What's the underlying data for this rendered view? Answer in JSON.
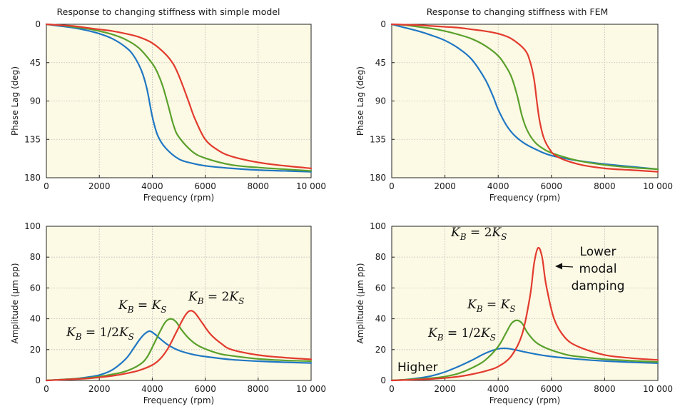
{
  "colors": {
    "blue": "#1f77c4",
    "green": "#5aa02c",
    "red": "#e23b2e",
    "panel_bg": "#fcf9e4",
    "grid": "#bcbcbc"
  },
  "chart_data": [
    {
      "type": "line",
      "title": "Response to changing stiffness with simple model",
      "xlabel": "Frequency (rpm)",
      "ylabel": "Phase Lag (deg)",
      "xlim": [
        0,
        10000
      ],
      "ylim": [
        0,
        180
      ],
      "y_inverted": true,
      "xticks": [
        "0",
        "2000",
        "4000",
        "6000",
        "8000",
        "10 000"
      ],
      "yticks": [
        "0",
        "45",
        "90",
        "135",
        "180"
      ],
      "grid": true,
      "series": [
        {
          "color": "blue",
          "x": [
            0,
            500,
            1000,
            1500,
            2000,
            2500,
            3000,
            3300,
            3600,
            3800,
            4000,
            4200,
            4500,
            5000,
            5500,
            6000,
            7000,
            8000,
            9000,
            10000
          ],
          "y": [
            0,
            2,
            4,
            7,
            11,
            17,
            27,
            37,
            55,
            76,
            108,
            130,
            145,
            158,
            163,
            166,
            169,
            171,
            172,
            173
          ]
        },
        {
          "color": "green",
          "x": [
            0,
            500,
            1000,
            1500,
            2000,
            2500,
            3000,
            3500,
            4000,
            4200,
            4400,
            4600,
            4800,
            5000,
            5500,
            6000,
            7000,
            8000,
            9000,
            10000
          ],
          "y": [
            0,
            1,
            3,
            5,
            8,
            12,
            18,
            28,
            46,
            57,
            73,
            95,
            118,
            132,
            149,
            157,
            165,
            168,
            170,
            172
          ]
        },
        {
          "color": "red",
          "x": [
            0,
            500,
            1000,
            1500,
            2000,
            2500,
            3000,
            3500,
            4000,
            4500,
            4800,
            5000,
            5200,
            5400,
            5600,
            6000,
            6500,
            7000,
            8000,
            9000,
            10000
          ],
          "y": [
            0,
            1,
            2,
            4,
            6,
            8,
            11,
            15,
            22,
            35,
            47,
            60,
            76,
            93,
            110,
            135,
            148,
            155,
            162,
            166,
            169
          ]
        }
      ]
    },
    {
      "type": "line",
      "title": "Response to changing stiffness with FEM",
      "xlabel": "Frequency (rpm)",
      "ylabel": "Phase Lag (deg)",
      "xlim": [
        0,
        10000
      ],
      "ylim": [
        0,
        180
      ],
      "y_inverted": true,
      "xticks": [
        "0",
        "2000",
        "4000",
        "6000",
        "8000",
        "10 000"
      ],
      "yticks": [
        "0",
        "45",
        "90",
        "135",
        "180"
      ],
      "grid": true,
      "series": [
        {
          "color": "blue",
          "x": [
            0,
            500,
            1000,
            1500,
            2000,
            2500,
            3000,
            3500,
            3800,
            4000,
            4300,
            4600,
            5000,
            5500,
            6000,
            7000,
            8000,
            9000,
            10000
          ],
          "y": [
            0,
            4,
            8,
            13,
            19,
            28,
            41,
            64,
            84,
            100,
            118,
            130,
            140,
            148,
            154,
            160,
            164,
            167,
            170
          ]
        },
        {
          "color": "green",
          "x": [
            0,
            500,
            1000,
            1500,
            2000,
            2500,
            3000,
            3500,
            4000,
            4300,
            4500,
            4700,
            4900,
            5100,
            5400,
            5800,
            6200,
            7000,
            8000,
            9000,
            10000
          ],
          "y": [
            0,
            1,
            3,
            5,
            8,
            12,
            17,
            25,
            37,
            50,
            62,
            82,
            108,
            125,
            139,
            148,
            153,
            160,
            165,
            168,
            170
          ]
        },
        {
          "color": "red",
          "x": [
            0,
            500,
            1000,
            1500,
            2000,
            2500,
            3000,
            3500,
            4000,
            4500,
            5000,
            5200,
            5350,
            5450,
            5550,
            5700,
            5900,
            6200,
            7000,
            8000,
            9000,
            10000
          ],
          "y": [
            0,
            0.5,
            1,
            2,
            3,
            4,
            6,
            8,
            11,
            17,
            30,
            44,
            65,
            90,
            112,
            132,
            145,
            155,
            164,
            169,
            171,
            173
          ]
        }
      ]
    },
    {
      "type": "line",
      "xlabel": "Frequency (rpm)",
      "ylabel": "Amplitude (µm pp)",
      "xlim": [
        0,
        10000
      ],
      "ylim": [
        0,
        100
      ],
      "xticks": [
        "0",
        "2000",
        "4000",
        "6000",
        "8000",
        "10 000"
      ],
      "yticks": [
        "0",
        "20",
        "40",
        "60",
        "80",
        "100"
      ],
      "grid": true,
      "annotations": [
        {
          "color": "blue",
          "text_parts": [
            "K",
            "B",
            " = 1/2",
            "K",
            "S"
          ]
        },
        {
          "color": "green",
          "text_parts": [
            "K",
            "B",
            " = ",
            "K",
            "S"
          ]
        },
        {
          "color": "red",
          "text_parts": [
            "K",
            "B",
            " = 2",
            "K",
            "S"
          ]
        }
      ],
      "series": [
        {
          "color": "blue",
          "x": [
            0,
            500,
            1000,
            1500,
            2000,
            2500,
            3000,
            3300,
            3500,
            3700,
            3900,
            4100,
            4300,
            4600,
            5000,
            5500,
            6000,
            7000,
            8000,
            9000,
            10000
          ],
          "y": [
            0,
            0.5,
            1,
            2,
            3.5,
            7,
            14,
            21,
            26,
            30,
            32,
            30,
            27,
            23,
            19.5,
            17,
            15.5,
            13.5,
            12.5,
            11.8,
            11.3
          ]
        },
        {
          "color": "green",
          "x": [
            0,
            500,
            1000,
            1500,
            2000,
            2500,
            3000,
            3500,
            3800,
            4100,
            4300,
            4500,
            4700,
            4900,
            5100,
            5400,
            5800,
            6500,
            7000,
            8000,
            9000,
            10000
          ],
          "y": [
            0,
            0.5,
            1,
            1.5,
            2.5,
            4,
            6,
            10,
            15,
            25,
            32,
            38,
            40,
            38,
            33,
            27,
            22,
            17.5,
            16,
            14,
            13,
            12.5
          ]
        },
        {
          "color": "red",
          "x": [
            0,
            500,
            1000,
            1500,
            2000,
            2500,
            3000,
            3500,
            4000,
            4300,
            4600,
            4900,
            5200,
            5400,
            5600,
            5900,
            6200,
            6600,
            7000,
            8000,
            9000,
            10000
          ],
          "y": [
            0,
            0.4,
            0.8,
            1.2,
            2,
            3,
            4.5,
            6.5,
            10,
            14,
            21,
            31,
            41,
            45,
            44,
            37,
            30,
            24,
            20,
            16.5,
            14.8,
            13.7
          ]
        }
      ]
    },
    {
      "type": "line",
      "xlabel": "Frequency (rpm)",
      "ylabel": "Amplitude (µm pp)",
      "xlim": [
        0,
        10000
      ],
      "ylim": [
        0,
        100
      ],
      "xticks": [
        "0",
        "2000",
        "4000",
        "6000",
        "8000",
        "10 000"
      ],
      "yticks": [
        "0",
        "20",
        "40",
        "60",
        "80",
        "100"
      ],
      "grid": true,
      "annotations": [
        {
          "color": "red",
          "text_parts": [
            "K",
            "B",
            " = 2",
            "K",
            "S"
          ]
        },
        {
          "color": "green",
          "text_parts": [
            "K",
            "B",
            " = ",
            "K",
            "S"
          ]
        },
        {
          "color": "blue",
          "text_parts": [
            "K",
            "B",
            " = 1/2",
            "K",
            "S"
          ]
        }
      ],
      "notes": {
        "lower": [
          "Lower",
          "modal",
          "damping"
        ],
        "higher": "Higher"
      },
      "series": [
        {
          "color": "blue",
          "x": [
            0,
            500,
            1000,
            1500,
            2000,
            2500,
            3000,
            3500,
            4000,
            4300,
            4600,
            5000,
            5500,
            6000,
            7000,
            8000,
            9000,
            10000
          ],
          "y": [
            0,
            0.5,
            1.5,
            3,
            5.5,
            9,
            13,
            17.5,
            20.5,
            20.8,
            20,
            18.5,
            16.8,
            15.5,
            13.8,
            12.6,
            11.8,
            11.2
          ]
        },
        {
          "color": "green",
          "x": [
            0,
            500,
            1000,
            1500,
            2000,
            2500,
            3000,
            3500,
            4000,
            4300,
            4500,
            4700,
            4900,
            5100,
            5400,
            5800,
            6500,
            7000,
            8000,
            9000,
            10000
          ],
          "y": [
            0,
            0.5,
            1,
            1.5,
            2.5,
            4.5,
            8,
            13,
            22,
            31,
            37,
            39,
            37,
            31,
            25,
            21,
            17,
            15.5,
            13.8,
            12.8,
            12
          ]
        },
        {
          "color": "red",
          "x": [
            0,
            500,
            1000,
            1500,
            2000,
            2500,
            3000,
            3500,
            4000,
            4500,
            4900,
            5200,
            5350,
            5500,
            5650,
            5800,
            6100,
            6500,
            7000,
            8000,
            9000,
            10000
          ],
          "y": [
            0,
            0.3,
            0.6,
            1,
            1.6,
            2.5,
            4,
            6,
            9,
            16,
            30,
            55,
            76,
            86,
            80,
            62,
            40,
            28,
            22,
            16.5,
            14.5,
            13.3
          ]
        }
      ]
    }
  ]
}
